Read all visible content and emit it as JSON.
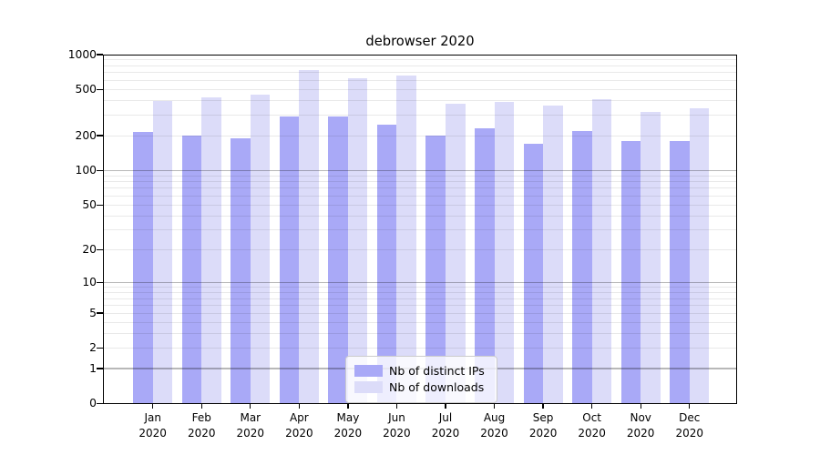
{
  "chart_data": {
    "type": "bar",
    "title": "debrowser 2020",
    "categories": [
      "Jan 2020",
      "Feb 2020",
      "Mar 2020",
      "Apr 2020",
      "May 2020",
      "Jun 2020",
      "Jul 2020",
      "Aug 2020",
      "Sep 2020",
      "Oct 2020",
      "Nov 2020",
      "Dec 2020"
    ],
    "series": [
      {
        "name": "Nb of distinct IPs",
        "color": "#a9a9f7",
        "values": [
          215,
          200,
          190,
          295,
          295,
          250,
          200,
          230,
          170,
          220,
          180,
          180
        ]
      },
      {
        "name": "Nb of downloads",
        "color": "#dcdcf9",
        "values": [
          400,
          430,
          455,
          730,
          630,
          665,
          375,
          390,
          365,
          415,
          320,
          345
        ]
      }
    ],
    "y_axis": {
      "scale": "log1p",
      "ticks": [
        0,
        1,
        2,
        5,
        10,
        20,
        50,
        100,
        200,
        500,
        1000
      ],
      "max": 1000,
      "major_gridlines": [
        1,
        10,
        100
      ],
      "minor_gridline_decades": [
        1,
        10,
        100
      ]
    },
    "x_axis": {
      "year": "2020"
    },
    "legend": {
      "position": "lower center"
    },
    "colors": {
      "minor_grid": "#e8e8e8",
      "major_grid": "#b5b5b5",
      "spine": "#000000",
      "background": "#ffffff"
    },
    "grid": true
  }
}
